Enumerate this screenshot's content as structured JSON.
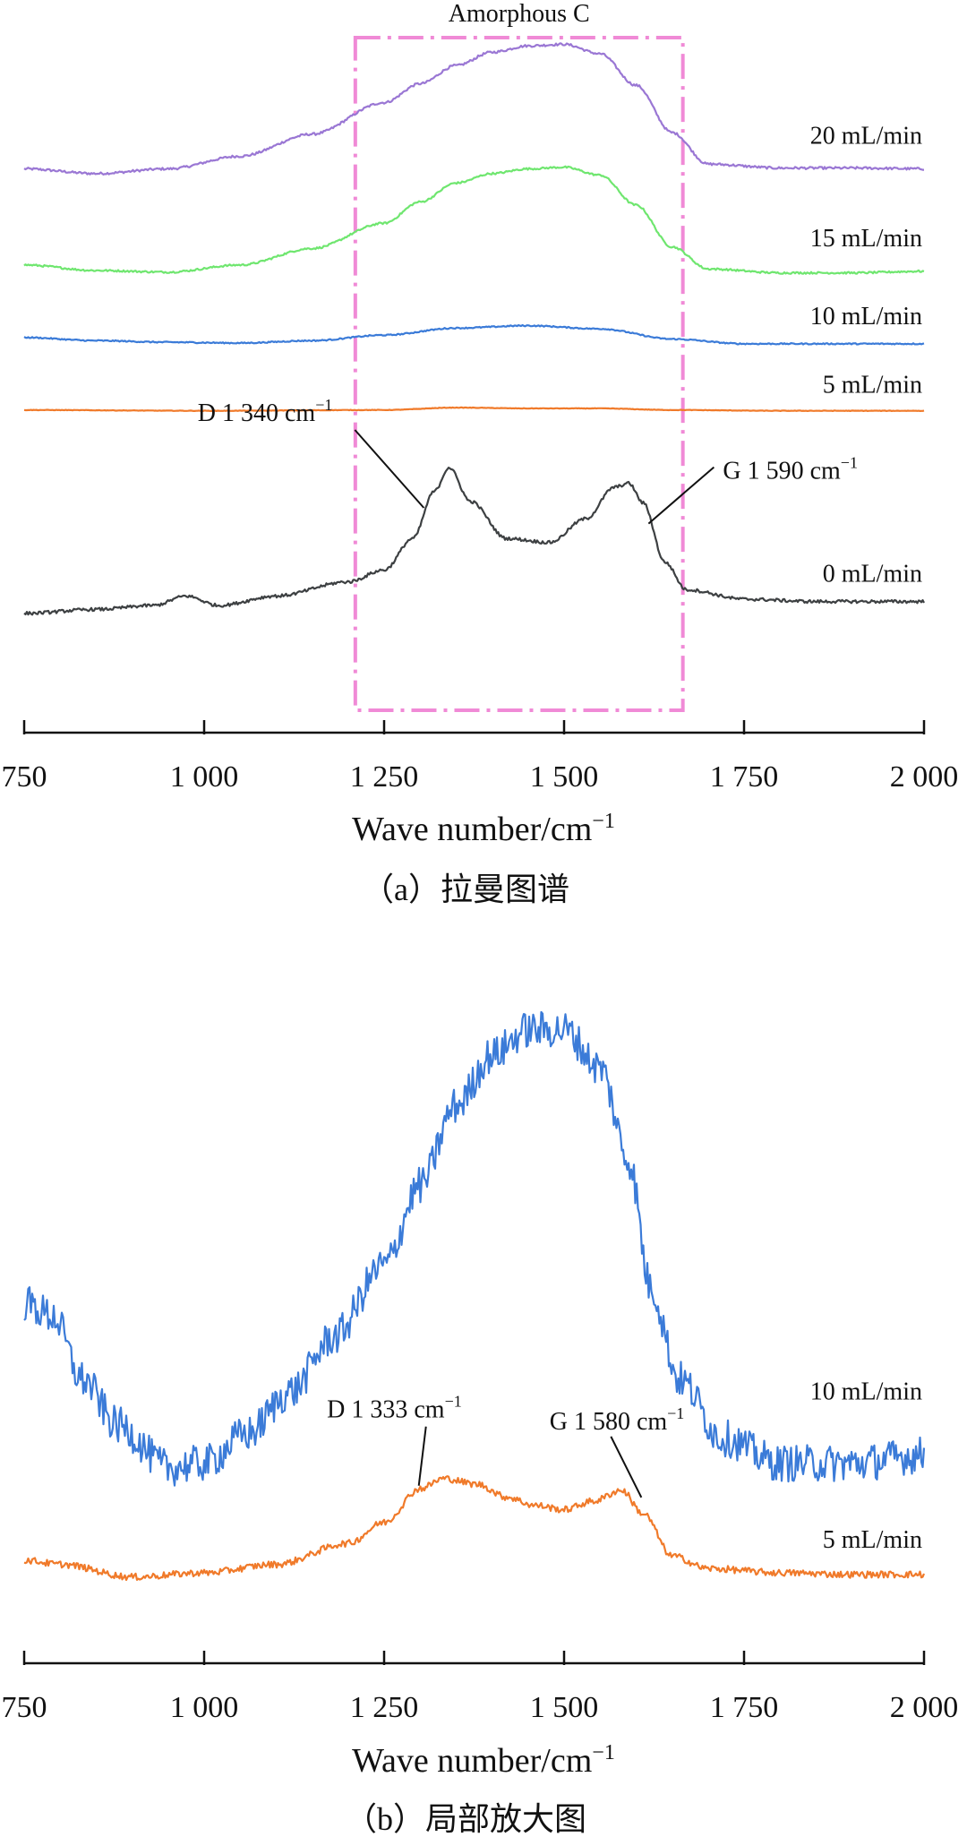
{
  "chart_data": [
    {
      "type": "line",
      "caption": "（a）拉曼图谱",
      "xlabel": "Wave number/cm",
      "xlabel_sup": "−1",
      "ylabel": "",
      "xlim": [
        750,
        2000
      ],
      "xticks": [
        750,
        1000,
        1250,
        1500,
        1750,
        2000
      ],
      "xtick_labels": [
        "750",
        "1 000",
        "1 250",
        "1 500",
        "1 750",
        "2 000"
      ],
      "region": {
        "label": "Amorphous C",
        "x": [
          1210,
          1665
        ],
        "color": "#f08ad6"
      },
      "annotations": [
        {
          "text": "D 1 340 cm",
          "sup": "−1",
          "x": 1340,
          "series": "0 mL/min"
        },
        {
          "text": "G 1 590 cm",
          "sup": "−1",
          "x": 1590,
          "series": "0 mL/min"
        }
      ],
      "series": [
        {
          "name": "20 mL/min",
          "color": "#9a77d4",
          "noise": 0.015,
          "x": [
            750,
            850,
            950,
            1050,
            1150,
            1250,
            1300,
            1350,
            1400,
            1450,
            1500,
            1550,
            1600,
            1650,
            1700,
            1800,
            1900,
            2000
          ],
          "y": [
            6.04,
            5.98,
            6.04,
            6.2,
            6.48,
            6.88,
            7.12,
            7.35,
            7.52,
            7.6,
            7.62,
            7.5,
            7.1,
            6.5,
            6.1,
            6.05,
            6.05,
            6.04
          ]
        },
        {
          "name": "15 mL/min",
          "color": "#6fe66f",
          "noise": 0.012,
          "x": [
            750,
            850,
            950,
            1050,
            1150,
            1250,
            1300,
            1350,
            1400,
            1450,
            1500,
            1550,
            1600,
            1650,
            1700,
            1800,
            1900,
            2000
          ],
          "y": [
            4.82,
            4.75,
            4.73,
            4.82,
            5.03,
            5.35,
            5.62,
            5.86,
            5.98,
            6.04,
            6.06,
            5.96,
            5.58,
            5.05,
            4.77,
            4.72,
            4.72,
            4.74
          ]
        },
        {
          "name": "10 mL/min",
          "color": "#3b7bd8",
          "noise": 0.008,
          "x": [
            750,
            850,
            950,
            1050,
            1150,
            1250,
            1350,
            1450,
            1550,
            1650,
            1750,
            1850,
            2000
          ],
          "y": [
            3.9,
            3.86,
            3.84,
            3.83,
            3.86,
            3.93,
            4.02,
            4.05,
            4.01,
            3.88,
            3.82,
            3.82,
            3.82
          ]
        },
        {
          "name": "5 mL/min",
          "color": "#f07a2a",
          "noise": 0.003,
          "x": [
            750,
            1000,
            1250,
            1350,
            1450,
            1550,
            1650,
            1800,
            2000
          ],
          "y": [
            2.98,
            2.97,
            2.98,
            3.01,
            3.0,
            3.0,
            2.98,
            2.97,
            2.97
          ]
        },
        {
          "name": "0 mL/min",
          "color": "#3d4042",
          "noise": 0.02,
          "x": [
            750,
            850,
            930,
            975,
            1020,
            1100,
            1200,
            1250,
            1290,
            1320,
            1340,
            1370,
            1420,
            1480,
            1530,
            1570,
            1590,
            1610,
            1640,
            1670,
            1750,
            1850,
            2000
          ],
          "y": [
            0.4,
            0.45,
            0.5,
            0.62,
            0.5,
            0.62,
            0.8,
            0.95,
            1.35,
            1.95,
            2.25,
            1.82,
            1.35,
            1.3,
            1.6,
            2.0,
            2.05,
            1.8,
            1.05,
            0.7,
            0.58,
            0.55,
            0.55
          ]
        }
      ]
    },
    {
      "type": "line",
      "caption": "（b）局部放大图",
      "xlabel": "Wave number/cm",
      "xlabel_sup": "−1",
      "ylabel": "",
      "xlim": [
        750,
        2000
      ],
      "xticks": [
        750,
        1000,
        1250,
        1500,
        1750,
        2000
      ],
      "xtick_labels": [
        "750",
        "1 000",
        "1 250",
        "1 500",
        "1 750",
        "2 000"
      ],
      "annotations": [
        {
          "text": "D 1 333 cm",
          "sup": "−1",
          "x": 1333,
          "series": "5 mL/min"
        },
        {
          "text": "G 1 580 cm",
          "sup": "−1",
          "x": 1580,
          "series": "5 mL/min"
        }
      ],
      "series": [
        {
          "name": "10 mL/min",
          "color": "#3b7bd8",
          "noise": 0.22,
          "x": [
            750,
            790,
            830,
            880,
            950,
            1000,
            1060,
            1120,
            1180,
            1250,
            1300,
            1350,
            1400,
            1450,
            1500,
            1550,
            1590,
            1620,
            1660,
            1720,
            1800,
            1900,
            2000
          ],
          "y": [
            4.2,
            4.05,
            3.3,
            2.75,
            2.25,
            2.3,
            2.65,
            3.15,
            3.8,
            4.65,
            5.6,
            6.55,
            7.15,
            7.45,
            7.45,
            7.0,
            5.9,
            4.4,
            3.3,
            2.6,
            2.3,
            2.3,
            2.4
          ]
        },
        {
          "name": "5 mL/min",
          "color": "#f07a2a",
          "noise": 0.04,
          "x": [
            750,
            800,
            900,
            1000,
            1100,
            1200,
            1250,
            1300,
            1333,
            1380,
            1420,
            1460,
            1500,
            1540,
            1580,
            1610,
            1650,
            1700,
            1800,
            1900,
            2000
          ],
          "y": [
            1.15,
            1.1,
            0.95,
            1.0,
            1.1,
            1.35,
            1.6,
            2.0,
            2.12,
            2.05,
            1.9,
            1.8,
            1.75,
            1.85,
            1.98,
            1.7,
            1.2,
            1.05,
            1.0,
            0.98,
            0.98
          ]
        }
      ]
    }
  ]
}
